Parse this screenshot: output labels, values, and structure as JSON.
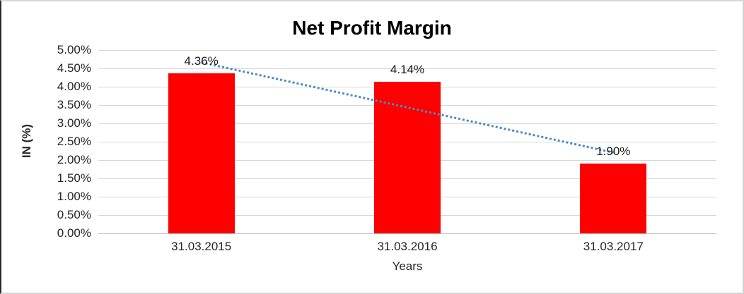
{
  "chart_data": {
    "type": "bar",
    "title": "Net Profit Margin",
    "xlabel": "Years",
    "ylabel": "IN (%)",
    "categories": [
      "31.03.2015",
      "31.03.2016",
      "31.03.2017"
    ],
    "values": [
      4.36,
      4.14,
      1.9
    ],
    "value_labels": [
      "4.36%",
      "4.14%",
      "1.90%"
    ],
    "ylim": [
      0,
      5
    ],
    "ytick_step": 0.5,
    "ytick_labels": [
      "0.00%",
      "0.50%",
      "1.00%",
      "1.50%",
      "2.00%",
      "2.50%",
      "3.00%",
      "3.50%",
      "4.00%",
      "4.50%",
      "5.00%"
    ],
    "grid": true,
    "legend": "none",
    "bar_color": "#FF0000",
    "trendline": {
      "style": "dotted",
      "color": "#4A89C8",
      "start_value": 4.69,
      "end_value": 2.23
    }
  }
}
